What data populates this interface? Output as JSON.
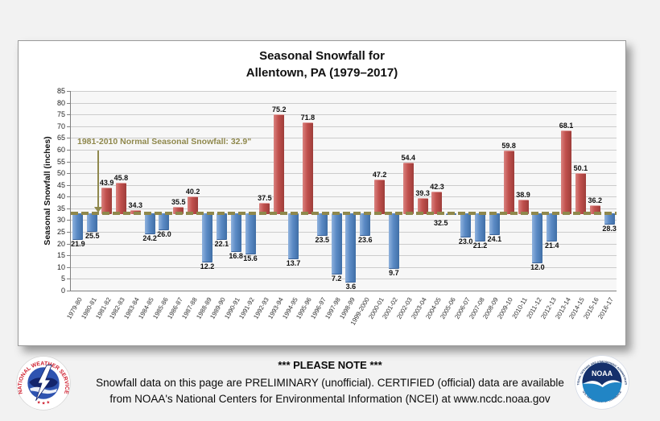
{
  "chart_data": {
    "type": "bar",
    "title_line1": "Seasonal Snowfall for",
    "title_line2": "Allentown, PA (1979–2017)",
    "ylabel": "Seasonal Snowfall (inches)",
    "ylim": [
      0,
      85
    ],
    "ytick_step": 5,
    "grid": true,
    "legend_position": "none",
    "baseline": {
      "value": 32.9,
      "label": "1981-2010 Normal Seasonal Snowfall: 32.9\"",
      "color": "#8f884c"
    },
    "categories": [
      "1979-80",
      "1980-81",
      "1981-82",
      "1982-83",
      "1983-84",
      "1984-85",
      "1985-86",
      "1986-87",
      "1987-88",
      "1988-89",
      "1989-90",
      "1990-91",
      "1991-92",
      "1992-93",
      "1993-94",
      "1994-95",
      "1995-96",
      "1996-97",
      "1997-98",
      "1998-99",
      "1999-2000",
      "2000-01",
      "2001-02",
      "2002-03",
      "2003-04",
      "2004-05",
      "2005-06",
      "2006-07",
      "2007-08",
      "2008-09",
      "2009-10",
      "2010-11",
      "2011-12",
      "2012-13",
      "2013-14",
      "2014-15",
      "2015-16",
      "2016-17"
    ],
    "values": [
      21.9,
      25.5,
      43.9,
      45.8,
      34.3,
      24.2,
      26.0,
      35.5,
      40.2,
      12.2,
      22.1,
      16.8,
      15.6,
      37.5,
      75.2,
      13.7,
      71.8,
      23.5,
      7.2,
      3.6,
      23.6,
      47.2,
      9.7,
      54.4,
      39.3,
      42.3,
      32.5,
      23.0,
      21.2,
      24.1,
      59.8,
      38.9,
      12.0,
      21.4,
      68.1,
      50.1,
      36.2,
      28.3
    ],
    "colors": {
      "above_normal": "#c0504d",
      "below_normal": "#5b8ac5"
    }
  },
  "footer": {
    "note_title": "*** PLEASE NOTE ***",
    "note_line1": "Snowfall data on this page are PRELIMINARY (unofficial). CERTIFIED (official) data are available",
    "note_line2": "from NOAA's National Centers for Environmental Information (NCEI) at www.ncdc.noaa.gov",
    "nws_ring_text": "NATIONAL WEATHER SERVICE",
    "nws_stars": "★ ★ ★",
    "noaa_text": "NOAA",
    "noaa_ring_top": "NATIONAL OCEANIC AND ATMOSPHERIC ADMINISTRATION",
    "noaa_ring_bottom": "U.S. DEPARTMENT OF COMMERCE"
  }
}
